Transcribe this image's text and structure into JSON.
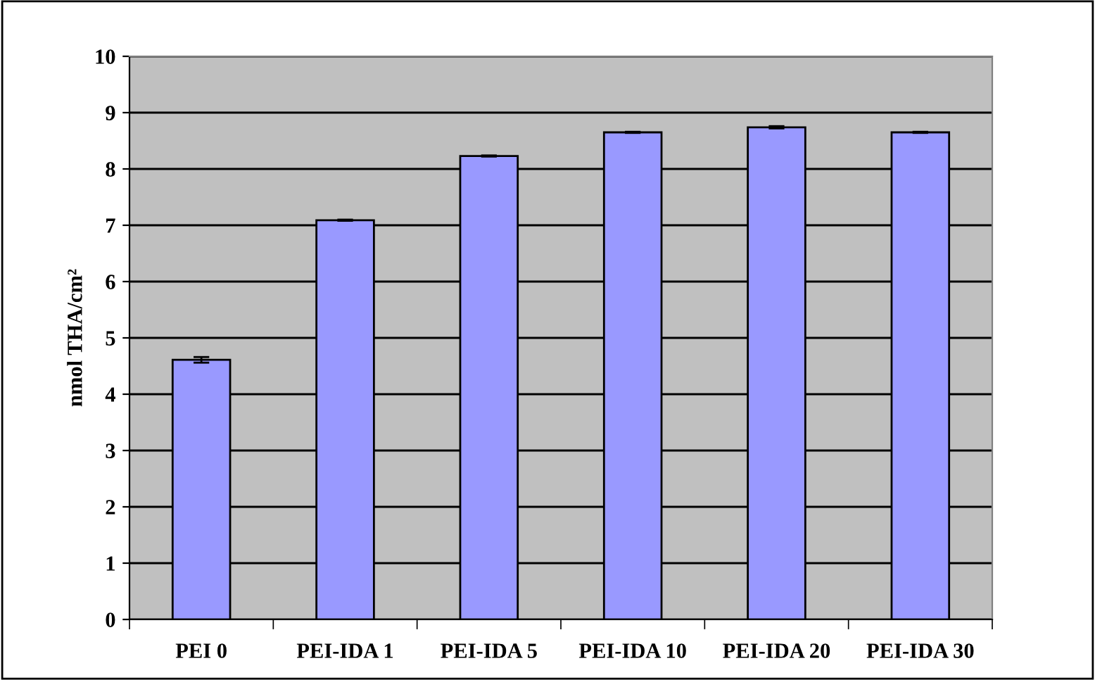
{
  "chart_data": {
    "type": "bar",
    "ylabel": "nmol THA/cm²",
    "categories": [
      "PEI 0",
      "PEI-IDA 1",
      "PEI-IDA 5",
      "PEI-IDA 10",
      "PEI-IDA 20",
      "PEI-IDA 30"
    ],
    "values": [
      4.61,
      7.09,
      8.23,
      8.65,
      8.74,
      8.65
    ],
    "errors": [
      0.05,
      0.01,
      0.01,
      0.01,
      0.02,
      0.01
    ],
    "color": "#9999ff",
    "ylim": [
      0,
      10
    ],
    "yticks": [
      0,
      1,
      2,
      3,
      4,
      5,
      6,
      7,
      8,
      9,
      10
    ],
    "grid": "y"
  }
}
